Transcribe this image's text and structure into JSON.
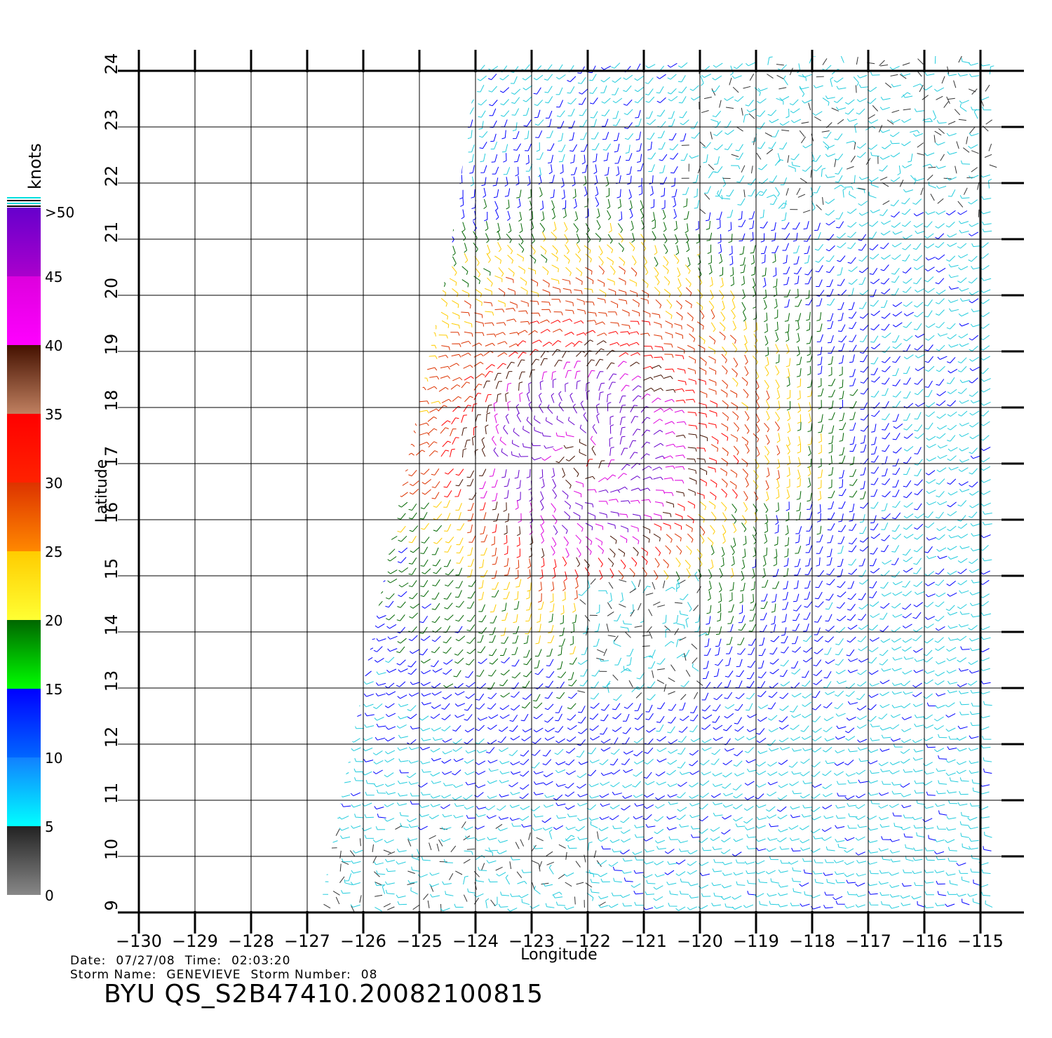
{
  "map": {
    "x_axis_title": "Longitude",
    "y_axis_title": "Latitude",
    "x_ticks": [
      "-130",
      "-129",
      "-128",
      "-127",
      "-126",
      "-125",
      "-124",
      "-123",
      "-122",
      "-121",
      "-120",
      "-119",
      "-118",
      "-117",
      "-116",
      "-115"
    ],
    "y_ticks": [
      "9",
      "10",
      "11",
      "12",
      "13",
      "14",
      "15",
      "16",
      "17",
      "18",
      "19",
      "20",
      "21",
      "22",
      "23",
      "24"
    ],
    "lon_range": [
      -130,
      -114.6
    ],
    "lat_range": [
      9,
      24
    ],
    "gridlines": true,
    "storm_center": {
      "lon": -122.1,
      "lat": 17.0
    }
  },
  "legend": {
    "title": "knots",
    "bins": [
      {
        "label": "0",
        "from": 0,
        "to": 5,
        "color_top": "#222222",
        "color_bottom": "#888888"
      },
      {
        "label": "5",
        "from": 5,
        "to": 10,
        "color_top": "#1180ff",
        "color_bottom": "#00ffff"
      },
      {
        "label": "10",
        "from": 10,
        "to": 15,
        "color_top": "#0000ff",
        "color_bottom": "#0066ff"
      },
      {
        "label": "15",
        "from": 15,
        "to": 20,
        "color_top": "#006600",
        "color_bottom": "#00ff00"
      },
      {
        "label": "20",
        "from": 20,
        "to": 25,
        "color_top": "#ffcc00",
        "color_bottom": "#ffff33"
      },
      {
        "label": "25",
        "from": 25,
        "to": 30,
        "color_top": "#dd3300",
        "color_bottom": "#ff8800"
      },
      {
        "label": "30",
        "from": 30,
        "to": 35,
        "color_top": "#ff0000",
        "color_bottom": "#ff2200"
      },
      {
        "label": "35",
        "from": 35,
        "to": 40,
        "color_top": "#441100",
        "color_bottom": "#c08060"
      },
      {
        "label": "40",
        "from": 40,
        "to": 45,
        "color_top": "#dd00dd",
        "color_bottom": "#ff00ff"
      },
      {
        "label": "45",
        "from": 45,
        "to": 50,
        "color_top": "#6600cc",
        "color_bottom": "#aa00cc"
      }
    ],
    "top_label": ">50"
  },
  "info": {
    "date_label": "Date:",
    "date": "07/27/08",
    "time_label": "Time:",
    "time": "02:03:20",
    "storm_name_label": "Storm  Name:",
    "storm_name": "GENEVIEVE",
    "storm_number_label": "Storm  Number:",
    "storm_number": "08",
    "product_id": "BYU  QS_S2B47410.20082100815"
  }
}
